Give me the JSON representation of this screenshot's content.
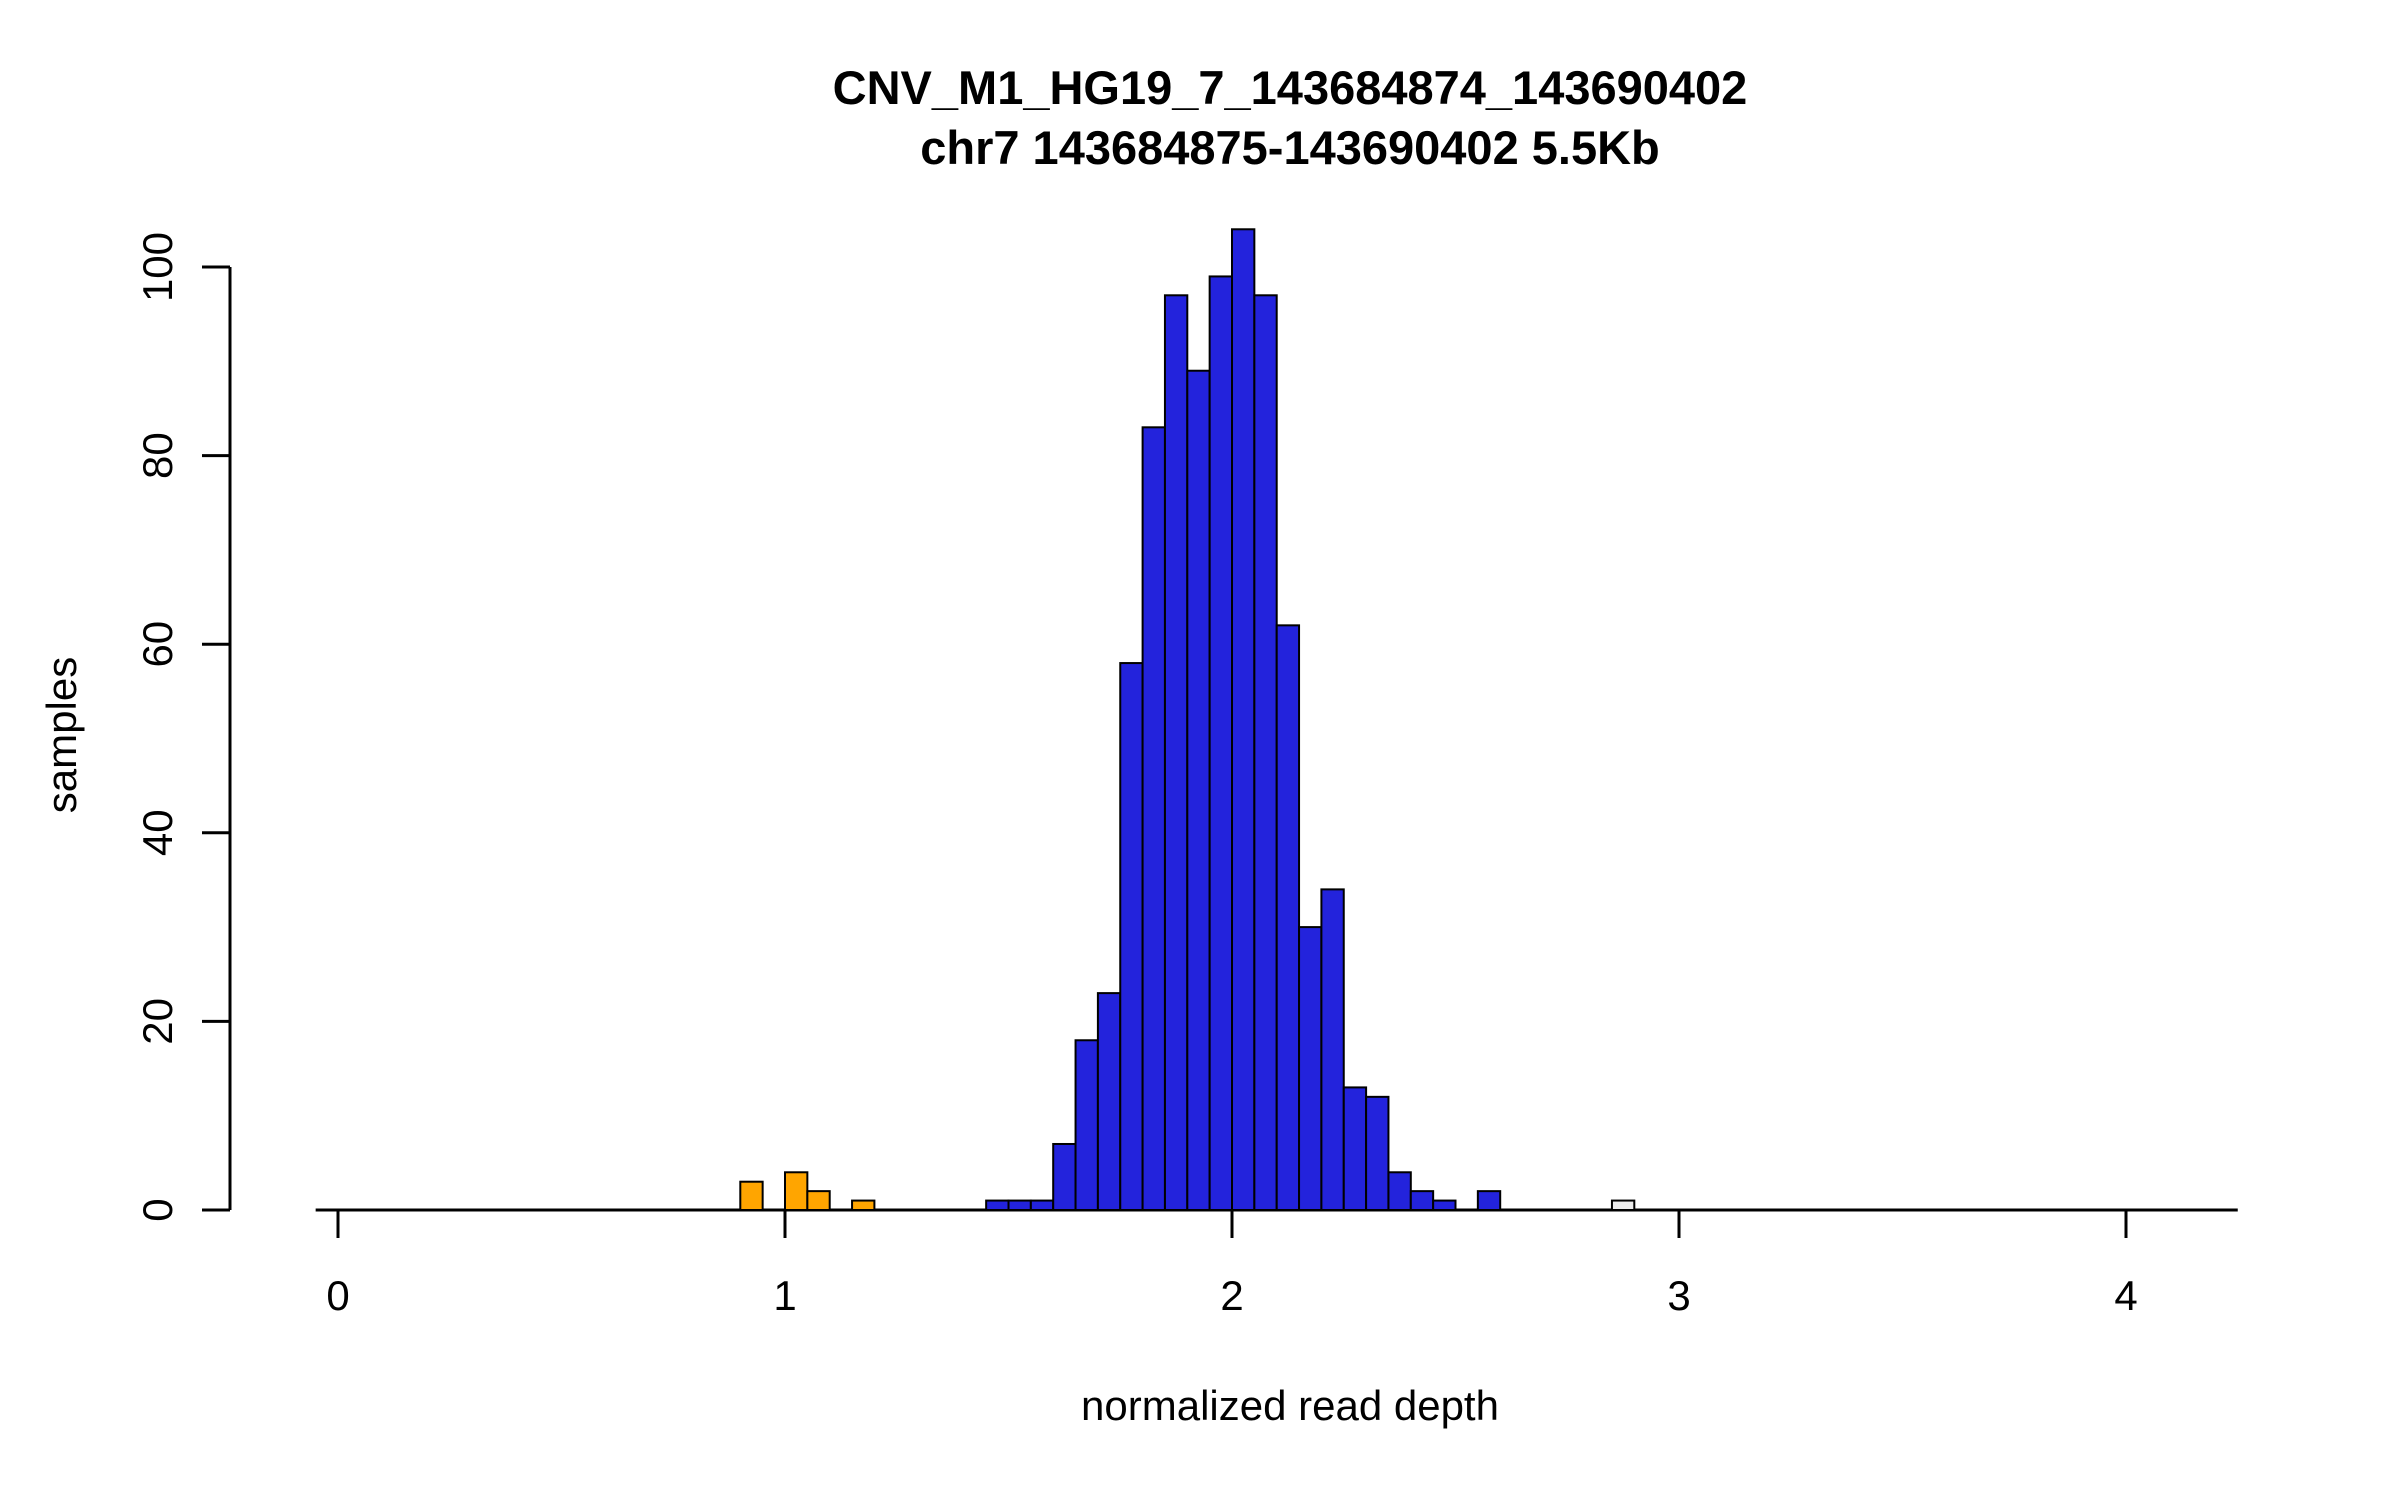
{
  "chart_data": {
    "type": "bar",
    "subtype": "histogram",
    "title": "CNV_M1_HG19_7_143684874_143690402",
    "subtitle": "chr7 143684875-143690402 5.5Kb",
    "xlabel": "normalized read depth",
    "ylabel": "samples",
    "xlim": [
      0,
      4.25
    ],
    "ylim": [
      0,
      104
    ],
    "x_ticks": [
      "0",
      "1",
      "2",
      "3",
      "4"
    ],
    "x_tick_values": [
      0,
      1,
      2,
      3,
      4
    ],
    "y_ticks": [
      "0",
      "20",
      "40",
      "60",
      "80",
      "100"
    ],
    "y_tick_values": [
      0,
      20,
      40,
      60,
      80,
      100
    ],
    "bin_width": 0.05,
    "grid": false,
    "legend": "none",
    "colors": {
      "normal": "#2323DC",
      "deletion": "#FFA500",
      "duplication": "#ECECEC",
      "border": "#000000",
      "axis": "#000000"
    },
    "bars": [
      {
        "x": 0.9,
        "count": 3,
        "color": "#FFA500"
      },
      {
        "x": 1.0,
        "count": 4,
        "color": "#FFA500"
      },
      {
        "x": 1.05,
        "count": 2,
        "color": "#FFA500"
      },
      {
        "x": 1.15,
        "count": 1,
        "color": "#FFA500"
      },
      {
        "x": 1.45,
        "count": 1,
        "color": "#2323DC"
      },
      {
        "x": 1.5,
        "count": 1,
        "color": "#2323DC"
      },
      {
        "x": 1.55,
        "count": 1,
        "color": "#2323DC"
      },
      {
        "x": 1.6,
        "count": 7,
        "color": "#2323DC"
      },
      {
        "x": 1.65,
        "count": 18,
        "color": "#2323DC"
      },
      {
        "x": 1.7,
        "count": 23,
        "color": "#2323DC"
      },
      {
        "x": 1.75,
        "count": 58,
        "color": "#2323DC"
      },
      {
        "x": 1.8,
        "count": 83,
        "color": "#2323DC"
      },
      {
        "x": 1.85,
        "count": 97,
        "color": "#2323DC"
      },
      {
        "x": 1.9,
        "count": 89,
        "color": "#2323DC"
      },
      {
        "x": 1.95,
        "count": 99,
        "color": "#2323DC"
      },
      {
        "x": 2.0,
        "count": 104,
        "color": "#2323DC"
      },
      {
        "x": 2.05,
        "count": 97,
        "color": "#2323DC"
      },
      {
        "x": 2.1,
        "count": 62,
        "color": "#2323DC"
      },
      {
        "x": 2.15,
        "count": 30,
        "color": "#2323DC"
      },
      {
        "x": 2.2,
        "count": 34,
        "color": "#2323DC"
      },
      {
        "x": 2.25,
        "count": 13,
        "color": "#2323DC"
      },
      {
        "x": 2.3,
        "count": 12,
        "color": "#2323DC"
      },
      {
        "x": 2.35,
        "count": 4,
        "color": "#2323DC"
      },
      {
        "x": 2.4,
        "count": 2,
        "color": "#2323DC"
      },
      {
        "x": 2.45,
        "count": 1,
        "color": "#2323DC"
      },
      {
        "x": 2.55,
        "count": 2,
        "color": "#2323DC"
      },
      {
        "x": 2.85,
        "count": 1,
        "color": "#ECECEC"
      }
    ]
  }
}
